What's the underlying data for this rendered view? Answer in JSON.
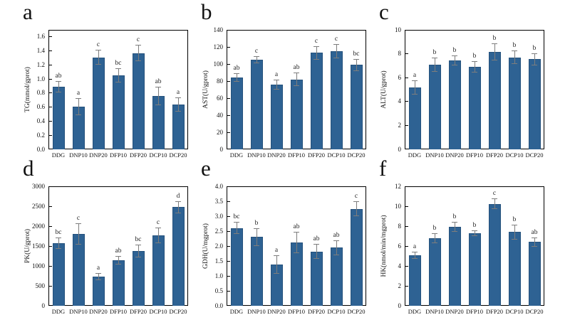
{
  "figure": {
    "bar_color": "#2e6293",
    "bar_border_color": "#24517c",
    "error_color": "#7d7d7d",
    "axis_color": "#000000",
    "background": "#ffffff"
  },
  "chart_data": [
    {
      "panel_letter": "a",
      "type": "bar",
      "ylabel": "TG(mmol/gprot)",
      "categories": [
        "DDG",
        "DNP10",
        "DNP20",
        "DFP10",
        "DFP20",
        "DCP10",
        "DCP20"
      ],
      "values": [
        0.89,
        0.61,
        1.31,
        1.05,
        1.37,
        0.76,
        0.64
      ],
      "errors": [
        0.08,
        0.12,
        0.11,
        0.1,
        0.12,
        0.13,
        0.1
      ],
      "sig_labels": [
        "ab",
        "a",
        "c",
        "bc",
        "c",
        "ab",
        "a"
      ],
      "ylim": [
        0,
        1.7
      ],
      "ytick_step": 0.2,
      "ytick_max": 1.6,
      "ytick_decimals": 1,
      "grid": false,
      "legend": "none"
    },
    {
      "panel_letter": "b",
      "type": "bar",
      "ylabel": "AST(U/gprot)",
      "categories": [
        "DDG",
        "DNP10",
        "DNP20",
        "DFP10",
        "DFP20",
        "DCP10",
        "DCP20"
      ],
      "values": [
        84,
        105,
        76,
        82,
        113,
        115,
        99
      ],
      "errors": [
        5,
        4,
        6,
        8,
        8,
        8,
        7
      ],
      "sig_labels": [
        "ab",
        "c",
        "a",
        "ab",
        "c",
        "c",
        "bc"
      ],
      "ylim": [
        0,
        140
      ],
      "ytick_step": 20,
      "ytick_max": 140,
      "ytick_decimals": 0,
      "grid": false,
      "legend": "none"
    },
    {
      "panel_letter": "c",
      "type": "bar",
      "ylabel": "ALT(U/gprot)",
      "categories": [
        "DDG",
        "DNP10",
        "DNP20",
        "DFP10",
        "DFP20",
        "DCP10",
        "DCP20"
      ],
      "values": [
        5.2,
        7.1,
        7.45,
        6.9,
        8.15,
        7.7,
        7.55
      ],
      "errors": [
        0.6,
        0.6,
        0.4,
        0.5,
        0.7,
        0.55,
        0.5
      ],
      "sig_labels": [
        "a",
        "b",
        "b",
        "b",
        "b",
        "b",
        "b"
      ],
      "ylim": [
        0,
        10
      ],
      "ytick_step": 2,
      "ytick_max": 10,
      "ytick_decimals": 0,
      "grid": false,
      "legend": "none"
    },
    {
      "panel_letter": "d",
      "type": "bar",
      "ylabel": "PK(U/gprot)",
      "categories": [
        "DDG",
        "DNP10",
        "DNP20",
        "DFP10",
        "DFP20",
        "DCP10",
        "DCP20"
      ],
      "values": [
        1570,
        1800,
        730,
        1140,
        1380,
        1770,
        2480
      ],
      "errors": [
        140,
        270,
        90,
        110,
        160,
        190,
        150
      ],
      "sig_labels": [
        "bc",
        "c",
        "a",
        "ab",
        "bc",
        "c",
        "d"
      ],
      "ylim": [
        0,
        3000
      ],
      "ytick_step": 500,
      "ytick_max": 3000,
      "ytick_decimals": 0,
      "grid": false,
      "legend": "none"
    },
    {
      "panel_letter": "e",
      "type": "bar",
      "ylabel": "GDH(U/mgprot)",
      "categories": [
        "DDG",
        "DNP10",
        "DNP20",
        "DFP10",
        "DFP20",
        "DCP10",
        "DCP20"
      ],
      "values": [
        2.6,
        2.3,
        1.38,
        2.12,
        1.82,
        1.95,
        3.25
      ],
      "errors": [
        0.2,
        0.3,
        0.3,
        0.36,
        0.26,
        0.25,
        0.25
      ],
      "sig_labels": [
        "bc",
        "b",
        "a",
        "ab",
        "ab",
        "ab",
        "c"
      ],
      "ylim": [
        0,
        4.0
      ],
      "ytick_step": 0.5,
      "ytick_max": 4.0,
      "ytick_decimals": 1,
      "grid": false,
      "legend": "none"
    },
    {
      "panel_letter": "f",
      "type": "bar",
      "ylabel": "HK(nmol/min/mgprot)",
      "categories": [
        "DDG",
        "DNP10",
        "DNP20",
        "DFP10",
        "DFP20",
        "DCP10",
        "DCP20"
      ],
      "values": [
        5.05,
        6.8,
        7.9,
        7.3,
        10.25,
        7.4,
        6.4
      ],
      "errors": [
        0.35,
        0.5,
        0.5,
        0.3,
        0.55,
        0.75,
        0.45
      ],
      "sig_labels": [
        "a",
        "b",
        "b",
        "b",
        "c",
        "b",
        "ab"
      ],
      "ylim": [
        0,
        12
      ],
      "ytick_step": 2,
      "ytick_max": 12,
      "ytick_decimals": 0,
      "grid": false,
      "legend": "none"
    }
  ]
}
